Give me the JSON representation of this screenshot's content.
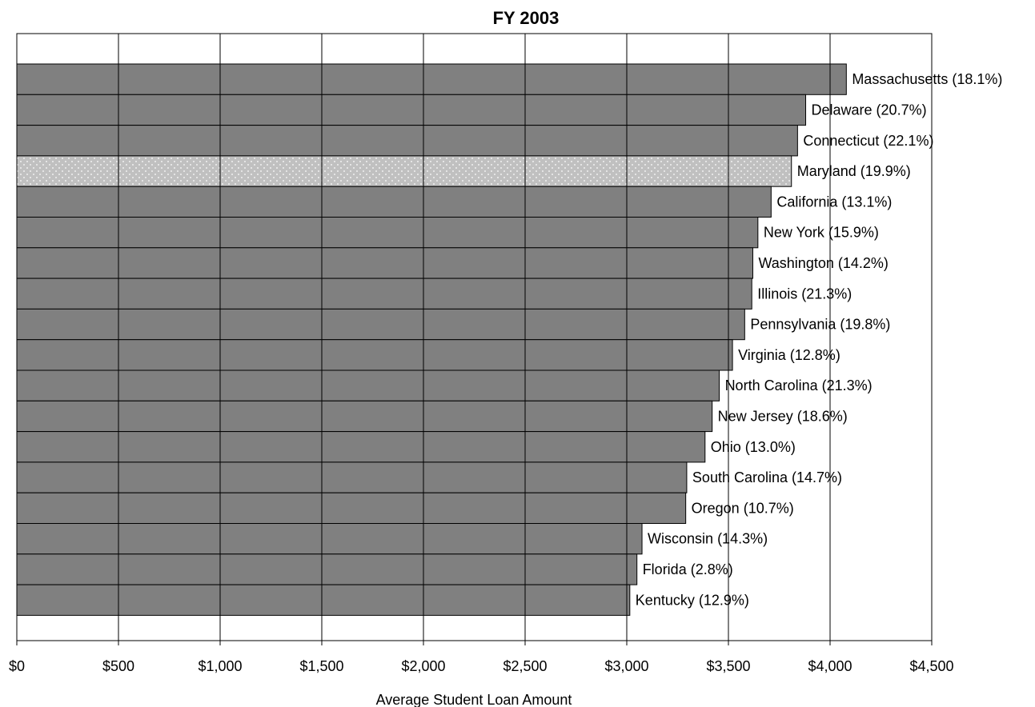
{
  "chart_data": {
    "type": "bar",
    "orientation": "horizontal",
    "title": "FY 2003",
    "xlabel": "Average Student Loan Amount",
    "ylabel": "",
    "xlim": [
      0,
      4500
    ],
    "x_ticks": [
      0,
      500,
      1000,
      1500,
      2000,
      2500,
      3000,
      3500,
      4000,
      4500
    ],
    "x_tick_labels": [
      "$0",
      "$500",
      "$1,000",
      "$1,500",
      "$2,000",
      "$2,500",
      "$3,000",
      "$3,500",
      "$4,000",
      "$4,500"
    ],
    "grid": "vertical",
    "categories": [
      "Massachusetts (18.1%)",
      "Delaware (20.7%)",
      "Connecticut (22.1%)",
      "Maryland (19.9%)",
      "California (13.1%)",
      "New York (15.9%)",
      "Washington (14.2%)",
      "Illinois (21.3%)",
      "Pennsylvania (19.8%)",
      "Virginia (12.8%)",
      "North Carolina (21.3%)",
      "New Jersey (18.6%)",
      "Ohio (13.0%)",
      "South Carolina (14.7%)",
      "Oregon (10.7%)",
      "Wisconsin (14.3%)",
      "Florida (2.8%)",
      "Kentucky (12.9%)"
    ],
    "values": [
      4080,
      3880,
      3840,
      3810,
      3710,
      3645,
      3620,
      3615,
      3580,
      3520,
      3455,
      3420,
      3385,
      3295,
      3290,
      3075,
      3050,
      3015
    ],
    "highlight": "Maryland (19.9%)",
    "colors": {
      "bar": "#808080",
      "highlight": "#c0c0c0",
      "highlight_dots": "#ffffff",
      "border": "#000000",
      "grid": "#000000"
    }
  }
}
